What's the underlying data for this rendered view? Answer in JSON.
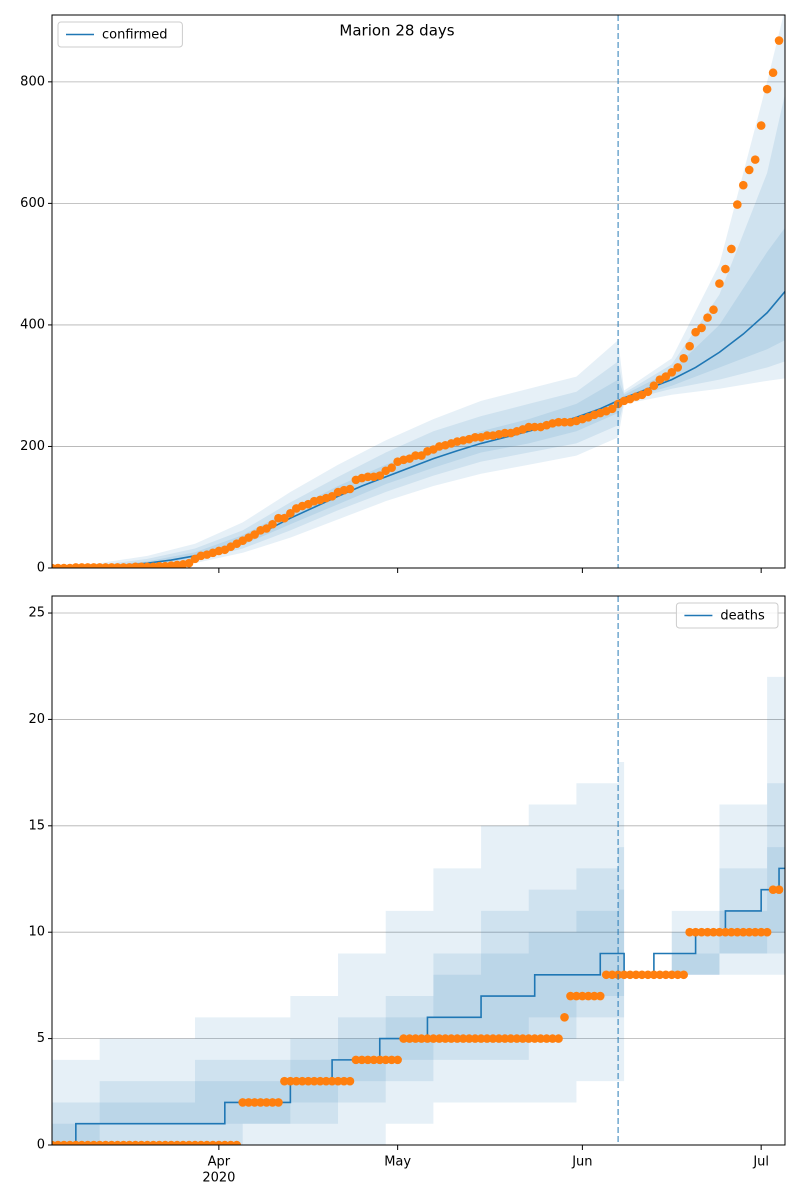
{
  "chart_data": [
    {
      "type": "line",
      "title": "Marion 28 days",
      "legend": "upper left",
      "grid": true,
      "step": false,
      "xlim": [
        0,
        123
      ],
      "xticks": [
        28,
        58,
        89,
        119
      ],
      "ylim": [
        0,
        910
      ],
      "yticks": [
        0,
        200,
        400,
        600,
        800
      ],
      "forecast_start": 95,
      "forecast_color": "#1f77b4",
      "series": [
        {
          "name": "confirmed",
          "color": "#1f77b4",
          "x": [
            0,
            4,
            8,
            12,
            16,
            20,
            24,
            28,
            32,
            36,
            40,
            44,
            48,
            52,
            56,
            60,
            64,
            68,
            72,
            76,
            80,
            84,
            88,
            92,
            96,
            100,
            104,
            108,
            112,
            116,
            120,
            123
          ],
          "values": [
            0,
            1,
            2,
            4,
            8,
            13,
            20,
            30,
            45,
            62,
            82,
            100,
            118,
            135,
            150,
            165,
            180,
            193,
            205,
            215,
            225,
            236,
            248,
            262,
            280,
            295,
            310,
            330,
            355,
            385,
            420,
            455
          ]
        }
      ],
      "band_color": "#1f77b4",
      "band_x": [
        0,
        8,
        16,
        24,
        32,
        40,
        48,
        56,
        64,
        72,
        80,
        88,
        95,
        96,
        104,
        112,
        120,
        123
      ],
      "bands": [
        {
          "lower": [
            0,
            0,
            2,
            8,
            25,
            50,
            80,
            110,
            135,
            155,
            170,
            185,
            215,
            270,
            285,
            295,
            308,
            312
          ],
          "upper": [
            2,
            8,
            20,
            40,
            75,
            125,
            170,
            210,
            245,
            275,
            295,
            315,
            375,
            292,
            345,
            500,
            800,
            920
          ]
        },
        {
          "lower": [
            0,
            1,
            4,
            12,
            32,
            62,
            95,
            125,
            152,
            175,
            190,
            205,
            235,
            275,
            295,
            310,
            330,
            340
          ],
          "upper": [
            1,
            5,
            15,
            32,
            62,
            108,
            150,
            190,
            225,
            250,
            270,
            290,
            340,
            288,
            335,
            450,
            650,
            780
          ]
        },
        {
          "lower": [
            0,
            1,
            6,
            16,
            38,
            72,
            105,
            138,
            165,
            190,
            205,
            225,
            255,
            277,
            300,
            330,
            360,
            375
          ],
          "upper": [
            1,
            3,
            11,
            26,
            54,
            95,
            135,
            170,
            200,
            225,
            245,
            270,
            310,
            285,
            325,
            400,
            520,
            560
          ]
        }
      ],
      "observed": {
        "color": "#ff7f0e",
        "x": [
          0,
          1,
          2,
          3,
          4,
          5,
          6,
          7,
          8,
          9,
          10,
          11,
          12,
          13,
          14,
          15,
          16,
          17,
          18,
          19,
          20,
          21,
          22,
          23,
          24,
          25,
          26,
          27,
          28,
          29,
          30,
          31,
          32,
          33,
          34,
          35,
          36,
          37,
          38,
          39,
          40,
          41,
          42,
          43,
          44,
          45,
          46,
          47,
          48,
          49,
          50,
          51,
          52,
          53,
          54,
          55,
          56,
          57,
          58,
          59,
          60,
          61,
          62,
          63,
          64,
          65,
          66,
          67,
          68,
          69,
          70,
          71,
          72,
          73,
          74,
          75,
          76,
          77,
          78,
          79,
          80,
          81,
          82,
          83,
          84,
          85,
          86,
          87,
          88,
          89,
          90,
          91,
          92,
          93,
          94,
          95,
          96,
          97,
          98,
          99,
          100,
          101,
          102,
          103,
          104,
          105,
          106,
          107,
          108,
          109,
          110,
          111,
          112,
          113,
          114,
          115,
          116,
          117,
          118,
          119,
          120,
          121,
          122
        ],
        "values": [
          0,
          0,
          0,
          0,
          1,
          1,
          1,
          1,
          1,
          1,
          1,
          1,
          1,
          1,
          2,
          2,
          2,
          2,
          3,
          3,
          4,
          5,
          6,
          8,
          15,
          20,
          22,
          25,
          28,
          30,
          35,
          40,
          45,
          50,
          55,
          62,
          65,
          72,
          82,
          82,
          90,
          98,
          102,
          105,
          110,
          112,
          115,
          118,
          125,
          128,
          130,
          145,
          148,
          150,
          150,
          152,
          160,
          165,
          175,
          178,
          180,
          185,
          185,
          192,
          195,
          200,
          202,
          205,
          208,
          210,
          212,
          215,
          215,
          218,
          218,
          220,
          222,
          222,
          225,
          228,
          232,
          232,
          232,
          235,
          238,
          240,
          240,
          240,
          242,
          245,
          248,
          252,
          255,
          258,
          262,
          270,
          275,
          278,
          282,
          285,
          290,
          300,
          310,
          315,
          322,
          330,
          345,
          365,
          388,
          395,
          412,
          425,
          468,
          492,
          525,
          598,
          630,
          655,
          672,
          728,
          788,
          815,
          868
        ]
      }
    },
    {
      "type": "line",
      "legend": "upper right",
      "grid": true,
      "step": true,
      "xlim": [
        0,
        123
      ],
      "xticks": [
        {
          "value": 28,
          "label": "Apr"
        },
        {
          "value": 58,
          "label": "May"
        },
        {
          "value": 89,
          "label": "Jun"
        },
        {
          "value": 119,
          "label": "Jul"
        }
      ],
      "x_sublabel": "2020",
      "ylim": [
        0,
        25.8
      ],
      "yticks": [
        0,
        5,
        10,
        15,
        20,
        25
      ],
      "forecast_start": 95,
      "forecast_color": "#1f77b4",
      "series": [
        {
          "name": "deaths",
          "color": "#1f77b4",
          "x": [
            0,
            4,
            29,
            40,
            47,
            55,
            63,
            72,
            81,
            92,
            96,
            101,
            108,
            113,
            119,
            122,
            123
          ],
          "values": [
            0,
            1,
            2,
            3,
            4,
            5,
            6,
            7,
            8,
            9,
            8,
            9,
            10,
            11,
            12,
            13,
            13
          ]
        }
      ],
      "band_color": "#1f77b4",
      "band_x": [
        0,
        8,
        16,
        24,
        32,
        40,
        48,
        56,
        64,
        72,
        80,
        88,
        95,
        96,
        104,
        112,
        120,
        123
      ],
      "bands": [
        {
          "lower": [
            0,
            0,
            0,
            0,
            0,
            0,
            0,
            1,
            2,
            2,
            2,
            3,
            3,
            8,
            8,
            8,
            8,
            8
          ],
          "upper": [
            4,
            5,
            5,
            6,
            6,
            7,
            9,
            11,
            13,
            15,
            16,
            17,
            18,
            8,
            11,
            16,
            22,
            26
          ]
        },
        {
          "lower": [
            0,
            0,
            0,
            0,
            1,
            1,
            2,
            3,
            4,
            4,
            5,
            6,
            6,
            8,
            8,
            9,
            9,
            9
          ],
          "upper": [
            2,
            3,
            3,
            4,
            4,
            5,
            6,
            7,
            9,
            11,
            12,
            13,
            14,
            8,
            10,
            13,
            17,
            20
          ]
        },
        {
          "lower": [
            0,
            1,
            1,
            1,
            1,
            2,
            3,
            4,
            5,
            5,
            6,
            7,
            7,
            8,
            8,
            9,
            10,
            10
          ],
          "upper": [
            1,
            2,
            2,
            3,
            3,
            4,
            5,
            6,
            8,
            9,
            10,
            11,
            12,
            8,
            9,
            11,
            14,
            16
          ]
        }
      ],
      "observed": {
        "color": "#ff7f0e",
        "x": [
          0,
          1,
          2,
          3,
          4,
          5,
          6,
          7,
          8,
          9,
          10,
          11,
          12,
          13,
          14,
          15,
          16,
          17,
          18,
          19,
          20,
          21,
          22,
          23,
          24,
          25,
          26,
          27,
          28,
          29,
          30,
          31,
          32,
          33,
          34,
          35,
          36,
          37,
          38,
          39,
          40,
          41,
          42,
          43,
          44,
          45,
          46,
          47,
          48,
          49,
          50,
          51,
          52,
          53,
          54,
          55,
          56,
          57,
          58,
          59,
          60,
          61,
          62,
          63,
          64,
          65,
          66,
          67,
          68,
          69,
          70,
          71,
          72,
          73,
          74,
          75,
          76,
          77,
          78,
          79,
          80,
          81,
          82,
          83,
          84,
          85,
          86,
          87,
          88,
          89,
          90,
          91,
          92,
          93,
          94,
          95,
          96,
          97,
          98,
          99,
          100,
          101,
          102,
          103,
          104,
          105,
          106,
          107,
          108,
          109,
          110,
          111,
          112,
          113,
          114,
          115,
          116,
          117,
          118,
          119,
          120,
          121,
          122
        ],
        "values": [
          0,
          0,
          0,
          0,
          0,
          0,
          0,
          0,
          0,
          0,
          0,
          0,
          0,
          0,
          0,
          0,
          0,
          0,
          0,
          0,
          0,
          0,
          0,
          0,
          0,
          0,
          0,
          0,
          0,
          0,
          0,
          0,
          2,
          2,
          2,
          2,
          2,
          2,
          2,
          3,
          3,
          3,
          3,
          3,
          3,
          3,
          3,
          3,
          3,
          3,
          3,
          4,
          4,
          4,
          4,
          4,
          4,
          4,
          4,
          5,
          5,
          5,
          5,
          5,
          5,
          5,
          5,
          5,
          5,
          5,
          5,
          5,
          5,
          5,
          5,
          5,
          5,
          5,
          5,
          5,
          5,
          5,
          5,
          5,
          5,
          5,
          6,
          7,
          7,
          7,
          7,
          7,
          7,
          8,
          8,
          8,
          8,
          8,
          8,
          8,
          8,
          8,
          8,
          8,
          8,
          8,
          8,
          10,
          10,
          10,
          10,
          10,
          10,
          10,
          10,
          10,
          10,
          10,
          10,
          10,
          10,
          12,
          12
        ]
      }
    }
  ]
}
